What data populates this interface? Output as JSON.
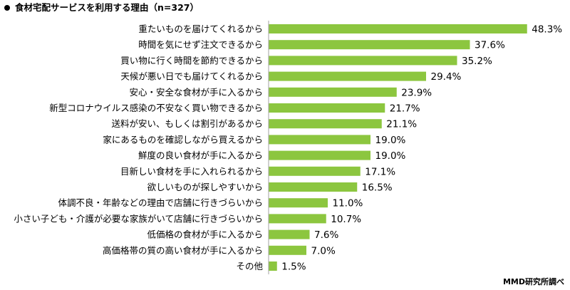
{
  "title": "食材宅配サービスを利用する理由（n=327）",
  "source": "MMD研究所調べ",
  "chart_data": {
    "type": "bar",
    "orientation": "horizontal",
    "title": "食材宅配サービスを利用する理由（n=327）",
    "color": "#8cc63f",
    "unit": "%",
    "xlim": [
      0,
      50
    ],
    "grid": false,
    "categories": [
      "重たいものを届けてくれるから",
      "時間を気にせず注文できるから",
      "買い物に行く時間を節約できるから",
      "天候が悪い日でも届けてくれるから",
      "安心・安全な食材が手に入るから",
      "新型コロナウイルス感染の不安なく買い物できるから",
      "送料が安い、もしくは割引があるから",
      "家にあるものを確認しながら買えるから",
      "鮮度の良い食材が手に入るから",
      "目新しい食材を手に入れられるから",
      "欲しいものが探しやすいから",
      "体調不良・年齢などの理由で店舗に行きづらいから",
      "小さい子ども・介護が必要な家族がいて店舗に行きづらいから",
      "低価格の食材が手に入るから",
      "高価格帯の質の高い食材が手に入るから",
      "その他"
    ],
    "values": [
      48.3,
      37.6,
      35.2,
      29.4,
      23.9,
      21.7,
      21.1,
      19.0,
      19.0,
      17.1,
      16.5,
      11.0,
      10.7,
      7.6,
      7.0,
      1.5
    ],
    "value_labels": [
      "48.3%",
      "37.6%",
      "35.2%",
      "29.4%",
      "23.9%",
      "21.7%",
      "21.1%",
      "19.0%",
      "19.0%",
      "17.1%",
      "16.5%",
      "11.0%",
      "10.7%",
      "7.6%",
      "7.0%",
      "1.5%"
    ]
  }
}
